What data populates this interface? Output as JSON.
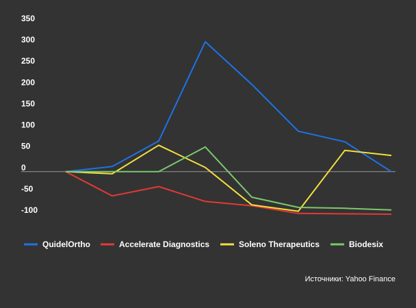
{
  "chart_data": {
    "type": "line",
    "x": [
      0,
      1,
      2,
      3,
      4,
      5,
      6,
      7
    ],
    "ylim": [
      -100,
      350
    ],
    "yticks": [
      -100,
      -50,
      0,
      50,
      100,
      150,
      200,
      250,
      300,
      350
    ],
    "ytick_labels": [
      "-100",
      "-50",
      "0",
      "50",
      "100",
      "150",
      "200",
      "250",
      "300",
      "350"
    ],
    "grid": false,
    "legend_position": "bottom",
    "series": [
      {
        "name": "QuidelOrtho",
        "color": "#1e73e8",
        "values": [
          0,
          12,
          72,
          305,
          205,
          95,
          70,
          0
        ]
      },
      {
        "name": "Accelerate Diagnostics",
        "color": "#e53935",
        "values": [
          0,
          -57,
          -35,
          -70,
          -80,
          -98,
          -99,
          -100
        ]
      },
      {
        "name": "Soleno Therapeutics",
        "color": "#f4e13c",
        "values": [
          0,
          -5,
          62,
          10,
          -78,
          -93,
          50,
          38
        ]
      },
      {
        "name": "Biodesix",
        "color": "#7bc96f",
        "values": [
          0,
          0,
          0,
          58,
          -60,
          -84,
          -86,
          -90
        ]
      }
    ]
  },
  "footer": {
    "source": "Источники: Yahoo Finance"
  }
}
